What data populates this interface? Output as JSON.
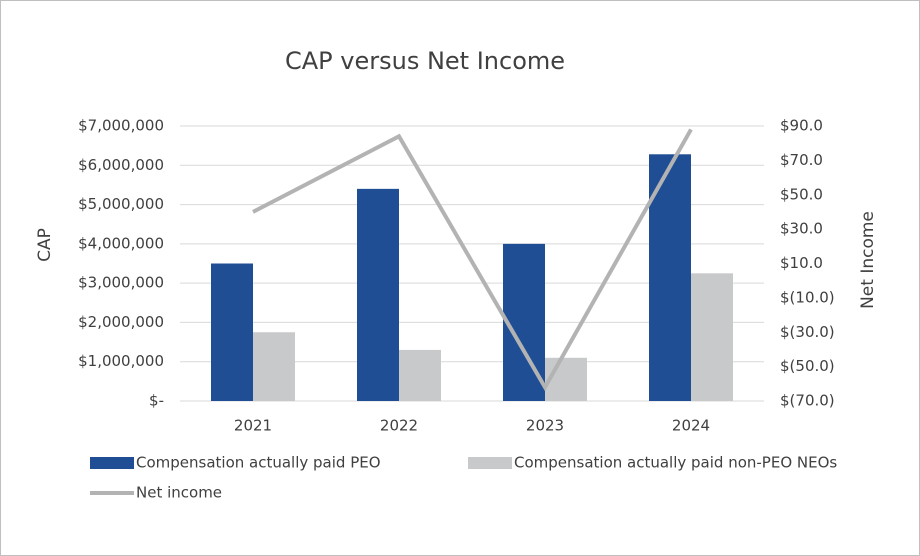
{
  "chart_data": {
    "type": "bar",
    "title": "CAP versus Net Income",
    "y_label": "CAP",
    "y2_label": "Net Income",
    "categories": [
      "2021",
      "2022",
      "2023",
      "2024"
    ],
    "series": [
      {
        "name": "Compensation actually paid PEO",
        "color": "#1f4e94",
        "type": "bar",
        "values": [
          3500000,
          5400000,
          4000000,
          6280000
        ]
      },
      {
        "name": "Compensation actually paid non-PEO NEOs",
        "color": "#c8c9cb",
        "type": "bar",
        "values": [
          1750000,
          1300000,
          1100000,
          3250000
        ]
      },
      {
        "name": "Net income",
        "color": "#b3b3b3",
        "type": "line",
        "axis": "y2",
        "values": [
          40,
          84,
          -62,
          88
        ]
      }
    ],
    "ylim": [
      0,
      7000000
    ],
    "yticks": [
      {
        "value": 0,
        "label": "$-"
      },
      {
        "value": 1000000,
        "label": "$1,000,000"
      },
      {
        "value": 2000000,
        "label": "$2,000,000"
      },
      {
        "value": 3000000,
        "label": "$3,000,000"
      },
      {
        "value": 4000000,
        "label": "$4,000,000"
      },
      {
        "value": 5000000,
        "label": "$5,000,000"
      },
      {
        "value": 6000000,
        "label": "$6,000,000"
      },
      {
        "value": 7000000,
        "label": "$7,000,000"
      }
    ],
    "y2lim": [
      -70,
      90
    ],
    "y2ticks": [
      {
        "value": -70,
        "label": "$(70.0)"
      },
      {
        "value": -50,
        "label": "$(50.0)"
      },
      {
        "value": -30,
        "label": "$(30.0)"
      },
      {
        "value": -10,
        "label": "$(10.0)"
      },
      {
        "value": 10,
        "label": "$10.0"
      },
      {
        "value": 30,
        "label": "$30.0"
      },
      {
        "value": 50,
        "label": "$50.0"
      },
      {
        "value": 70,
        "label": "$70.0"
      },
      {
        "value": 90,
        "label": "$90.0"
      }
    ],
    "grid": true
  }
}
